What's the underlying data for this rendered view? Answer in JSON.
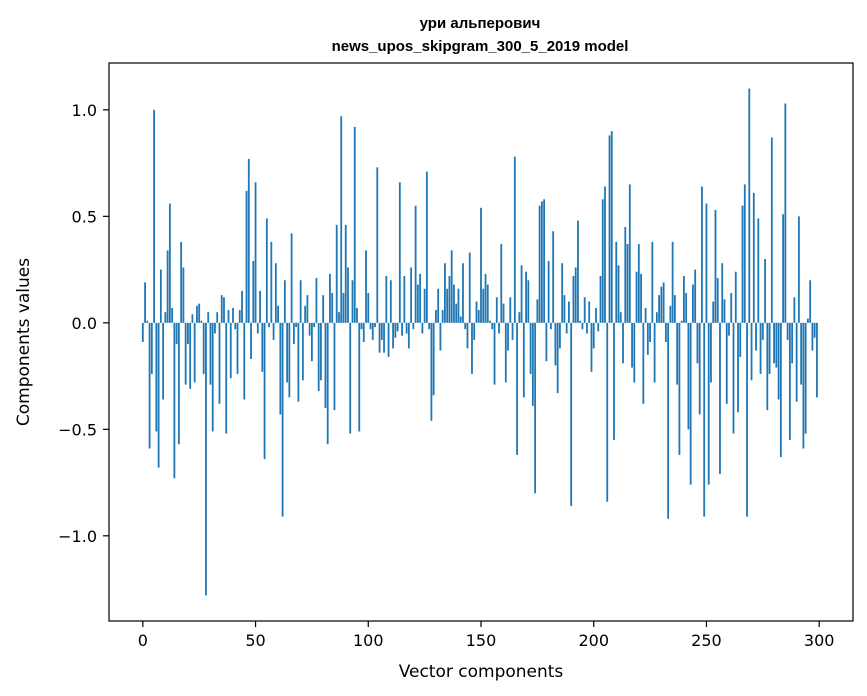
{
  "chart_data": {
    "type": "bar",
    "title": [
      "ури альперович",
      "news_upos_skipgram_300_5_2019 model"
    ],
    "xlabel": "Vector components",
    "ylabel": "Components values",
    "xlim": [
      -15,
      315
    ],
    "ylim": [
      -1.4,
      1.22
    ],
    "xticks": [
      0,
      50,
      100,
      150,
      200,
      250,
      300
    ],
    "xtick_labels": [
      "0",
      "50",
      "100",
      "150",
      "200",
      "250",
      "300"
    ],
    "yticks": [
      -1.0,
      -0.5,
      0.0,
      0.5,
      1.0
    ],
    "ytick_labels": [
      "−1.0",
      "−0.5",
      "0.0",
      "0.5",
      "1.0"
    ],
    "grid": false,
    "bar_color": "#1f77b4",
    "values": [
      -0.09,
      0.19,
      0.01,
      -0.59,
      -0.24,
      1.0,
      -0.51,
      -0.68,
      0.25,
      -0.36,
      0.05,
      0.34,
      0.56,
      0.07,
      -0.73,
      -0.1,
      -0.57,
      0.38,
      0.26,
      -0.29,
      -0.1,
      -0.31,
      0.04,
      -0.28,
      0.08,
      0.09,
      0.01,
      -0.24,
      -1.28,
      0.05,
      -0.29,
      -0.51,
      -0.05,
      0.05,
      -0.38,
      0.13,
      0.12,
      -0.52,
      0.06,
      -0.26,
      0.07,
      -0.03,
      -0.24,
      0.06,
      0.15,
      -0.36,
      0.62,
      0.77,
      -0.17,
      0.29,
      0.66,
      -0.05,
      0.15,
      -0.23,
      -0.64,
      0.49,
      -0.02,
      0.38,
      -0.08,
      0.28,
      0.08,
      -0.43,
      -0.91,
      0.2,
      -0.28,
      -0.35,
      0.42,
      -0.1,
      -0.02,
      -0.37,
      0.2,
      -0.27,
      0.08,
      0.13,
      -0.06,
      -0.18,
      -0.02,
      0.21,
      -0.32,
      -0.27,
      0.13,
      -0.4,
      -0.57,
      0.23,
      0.14,
      -0.41,
      0.46,
      0.05,
      0.97,
      0.14,
      0.46,
      0.26,
      -0.52,
      0.2,
      0.92,
      0.07,
      -0.51,
      -0.03,
      -0.09,
      0.34,
      0.14,
      -0.03,
      -0.08,
      -0.02,
      0.73,
      -0.14,
      -0.08,
      -0.14,
      0.22,
      -0.16,
      0.2,
      -0.12,
      -0.07,
      -0.04,
      0.66,
      -0.06,
      0.22,
      -0.05,
      -0.12,
      0.26,
      -0.03,
      0.55,
      0.18,
      0.23,
      -0.05,
      0.16,
      0.71,
      -0.03,
      -0.46,
      -0.34,
      0.06,
      0.16,
      -0.13,
      0.06,
      0.28,
      0.16,
      0.22,
      0.34,
      0.18,
      0.09,
      0.16,
      0.03,
      0.28,
      -0.03,
      -0.12,
      0.33,
      -0.24,
      -0.08,
      0.1,
      0.06,
      0.54,
      0.16,
      0.23,
      0.18,
      0.01,
      -0.03,
      -0.29,
      0.12,
      -0.05,
      0.37,
      0.09,
      -0.28,
      -0.13,
      0.12,
      -0.08,
      0.78,
      -0.62,
      0.05,
      0.27,
      -0.35,
      0.24,
      0.2,
      -0.24,
      -0.39,
      -0.8,
      0.11,
      0.55,
      0.57,
      0.58,
      -0.18,
      0.29,
      -0.03,
      0.43,
      -0.2,
      -0.33,
      -0.12,
      0.28,
      0.13,
      -0.05,
      0.1,
      -0.86,
      0.22,
      0.26,
      0.48,
      0.01,
      -0.03,
      0.12,
      -0.05,
      0.1,
      -0.23,
      -0.12,
      0.07,
      -0.04,
      0.22,
      0.58,
      0.64,
      -0.84,
      0.88,
      0.9,
      -0.55,
      0.38,
      0.27,
      0.05,
      -0.19,
      0.45,
      0.37,
      0.65,
      -0.21,
      -0.28,
      0.24,
      0.37,
      0.23,
      -0.38,
      0.07,
      -0.15,
      -0.09,
      0.38,
      -0.28,
      0.05,
      0.13,
      0.17,
      0.19,
      -0.09,
      -0.92,
      0.08,
      0.38,
      0.13,
      -0.29,
      -0.62,
      0.01,
      0.22,
      0.14,
      -0.5,
      -0.76,
      0.18,
      0.25,
      -0.19,
      -0.43,
      0.64,
      -0.91,
      0.56,
      -0.76,
      -0.28,
      0.1,
      0.53,
      0.21,
      -0.71,
      0.28,
      0.11,
      -0.38,
      -0.06,
      0.14,
      -0.52,
      0.24,
      -0.42,
      -0.16,
      0.55,
      0.65,
      -0.91,
      1.1,
      -0.27,
      0.61,
      -0.13,
      0.49,
      -0.24,
      -0.08,
      0.3,
      -0.41,
      -0.24,
      0.87,
      -0.19,
      -0.21,
      -0.36,
      -0.63,
      0.51,
      1.03,
      -0.08,
      -0.55,
      -0.19,
      0.12,
      -0.37,
      0.5,
      -0.29,
      -0.59,
      -0.52,
      0.02,
      0.2,
      -0.13,
      -0.07,
      -0.35
    ]
  }
}
